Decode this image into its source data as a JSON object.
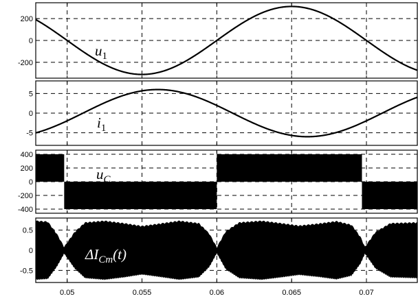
{
  "chart_data": {
    "type": "line",
    "x": {
      "lim": [
        0.0479,
        0.0734
      ],
      "ticks": [
        0.05,
        0.055,
        0.06,
        0.065,
        0.07
      ],
      "tick_labels": [
        "0.05",
        "0.055",
        "0.06",
        "0.065",
        "0.07"
      ]
    },
    "grid": true,
    "panels": [
      {
        "label_main": "u",
        "label_sub": "1",
        "ylim": [
          -345,
          345
        ],
        "ticks": [
          200,
          0,
          -200
        ],
        "tick_labels": [
          "200",
          "0",
          "-200"
        ],
        "signal": {
          "kind": "sine",
          "amplitude": 311,
          "frequency_hz": 50,
          "phase_deg": 0
        }
      },
      {
        "label_main": "i",
        "label_sub": "1",
        "ylim": [
          -8.2,
          8.2
        ],
        "ticks": [
          5,
          0,
          -5
        ],
        "tick_labels": [
          "5",
          "0",
          "-5"
        ],
        "signal": {
          "kind": "sine",
          "amplitude": 6,
          "frequency_hz": 50,
          "phase_deg": 161
        }
      },
      {
        "label_main": "u",
        "label_sub": "C",
        "ylim": [
          -460,
          460
        ],
        "ticks": [
          400,
          200,
          0,
          -200,
          -400
        ],
        "tick_labels": [
          "400",
          "200",
          "0",
          "-200",
          "-400"
        ],
        "signal": {
          "kind": "pwm_blocks",
          "low": -400,
          "high": 400,
          "blocks": [
            {
              "x0": 0.0479,
              "x1": 0.0498,
              "sign": 1
            },
            {
              "x0": 0.0498,
              "x1": 0.06,
              "sign": -1
            },
            {
              "x0": 0.06,
              "x1": 0.0697,
              "sign": 1
            },
            {
              "x0": 0.0697,
              "x1": 0.0734,
              "sign": -1
            }
          ]
        }
      },
      {
        "label_main": "ΔI",
        "label_sub": "Cm",
        "label_tail": "(t)",
        "ylim": [
          -0.8,
          0.8
        ],
        "ticks": [
          0.5,
          0,
          -0.5
        ],
        "tick_labels": [
          "0.5",
          "0",
          "-0.5"
        ],
        "signal": {
          "kind": "ripple_envelope",
          "envelope": [
            [
              0.0479,
              0.7
            ],
            [
              0.0487,
              0.68
            ],
            [
              0.0493,
              0.38
            ],
            [
              0.0498,
              0.05
            ],
            [
              0.0505,
              0.42
            ],
            [
              0.0512,
              0.66
            ],
            [
              0.0525,
              0.7
            ],
            [
              0.0538,
              0.64
            ],
            [
              0.055,
              0.57
            ],
            [
              0.0562,
              0.63
            ],
            [
              0.0575,
              0.7
            ],
            [
              0.0588,
              0.64
            ],
            [
              0.0595,
              0.38
            ],
            [
              0.06,
              0.04
            ],
            [
              0.0606,
              0.44
            ],
            [
              0.0615,
              0.66
            ],
            [
              0.063,
              0.7
            ],
            [
              0.0643,
              0.64
            ],
            [
              0.0655,
              0.58
            ],
            [
              0.0668,
              0.63
            ],
            [
              0.068,
              0.69
            ],
            [
              0.069,
              0.6
            ],
            [
              0.0696,
              0.3
            ],
            [
              0.0699,
              0.05
            ],
            [
              0.0706,
              0.42
            ],
            [
              0.0716,
              0.64
            ],
            [
              0.0734,
              0.66
            ]
          ]
        }
      }
    ]
  }
}
